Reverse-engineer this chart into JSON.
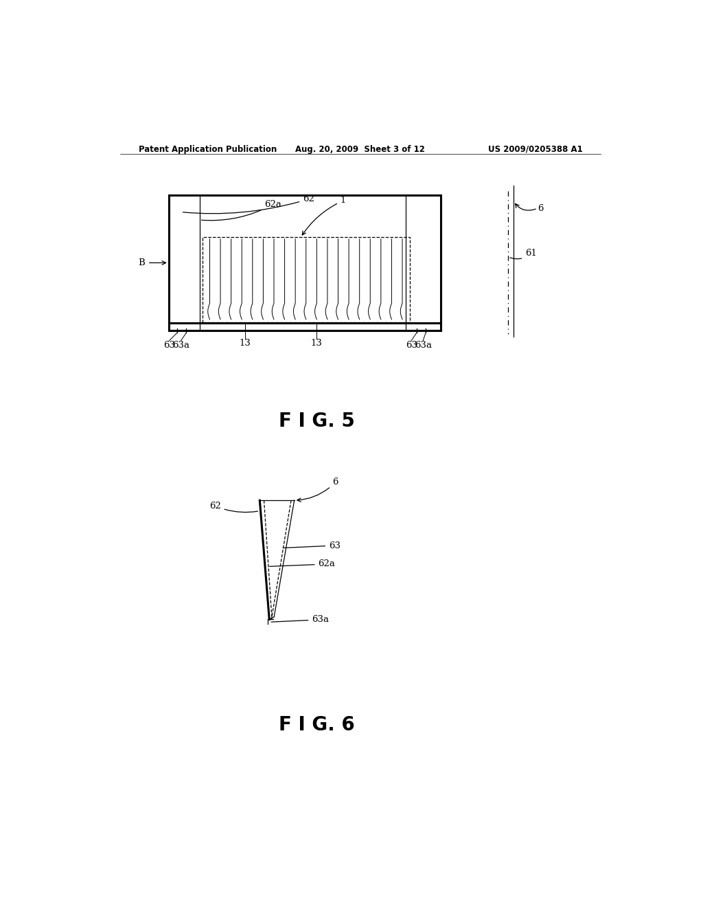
{
  "bg_color": "#ffffff",
  "header_left": "Patent Application Publication",
  "header_mid": "Aug. 20, 2009  Sheet 3 of 12",
  "header_right": "US 2009/0205388 A1",
  "fig5_label": "F I G. 5",
  "fig6_label": "F I G. 6"
}
